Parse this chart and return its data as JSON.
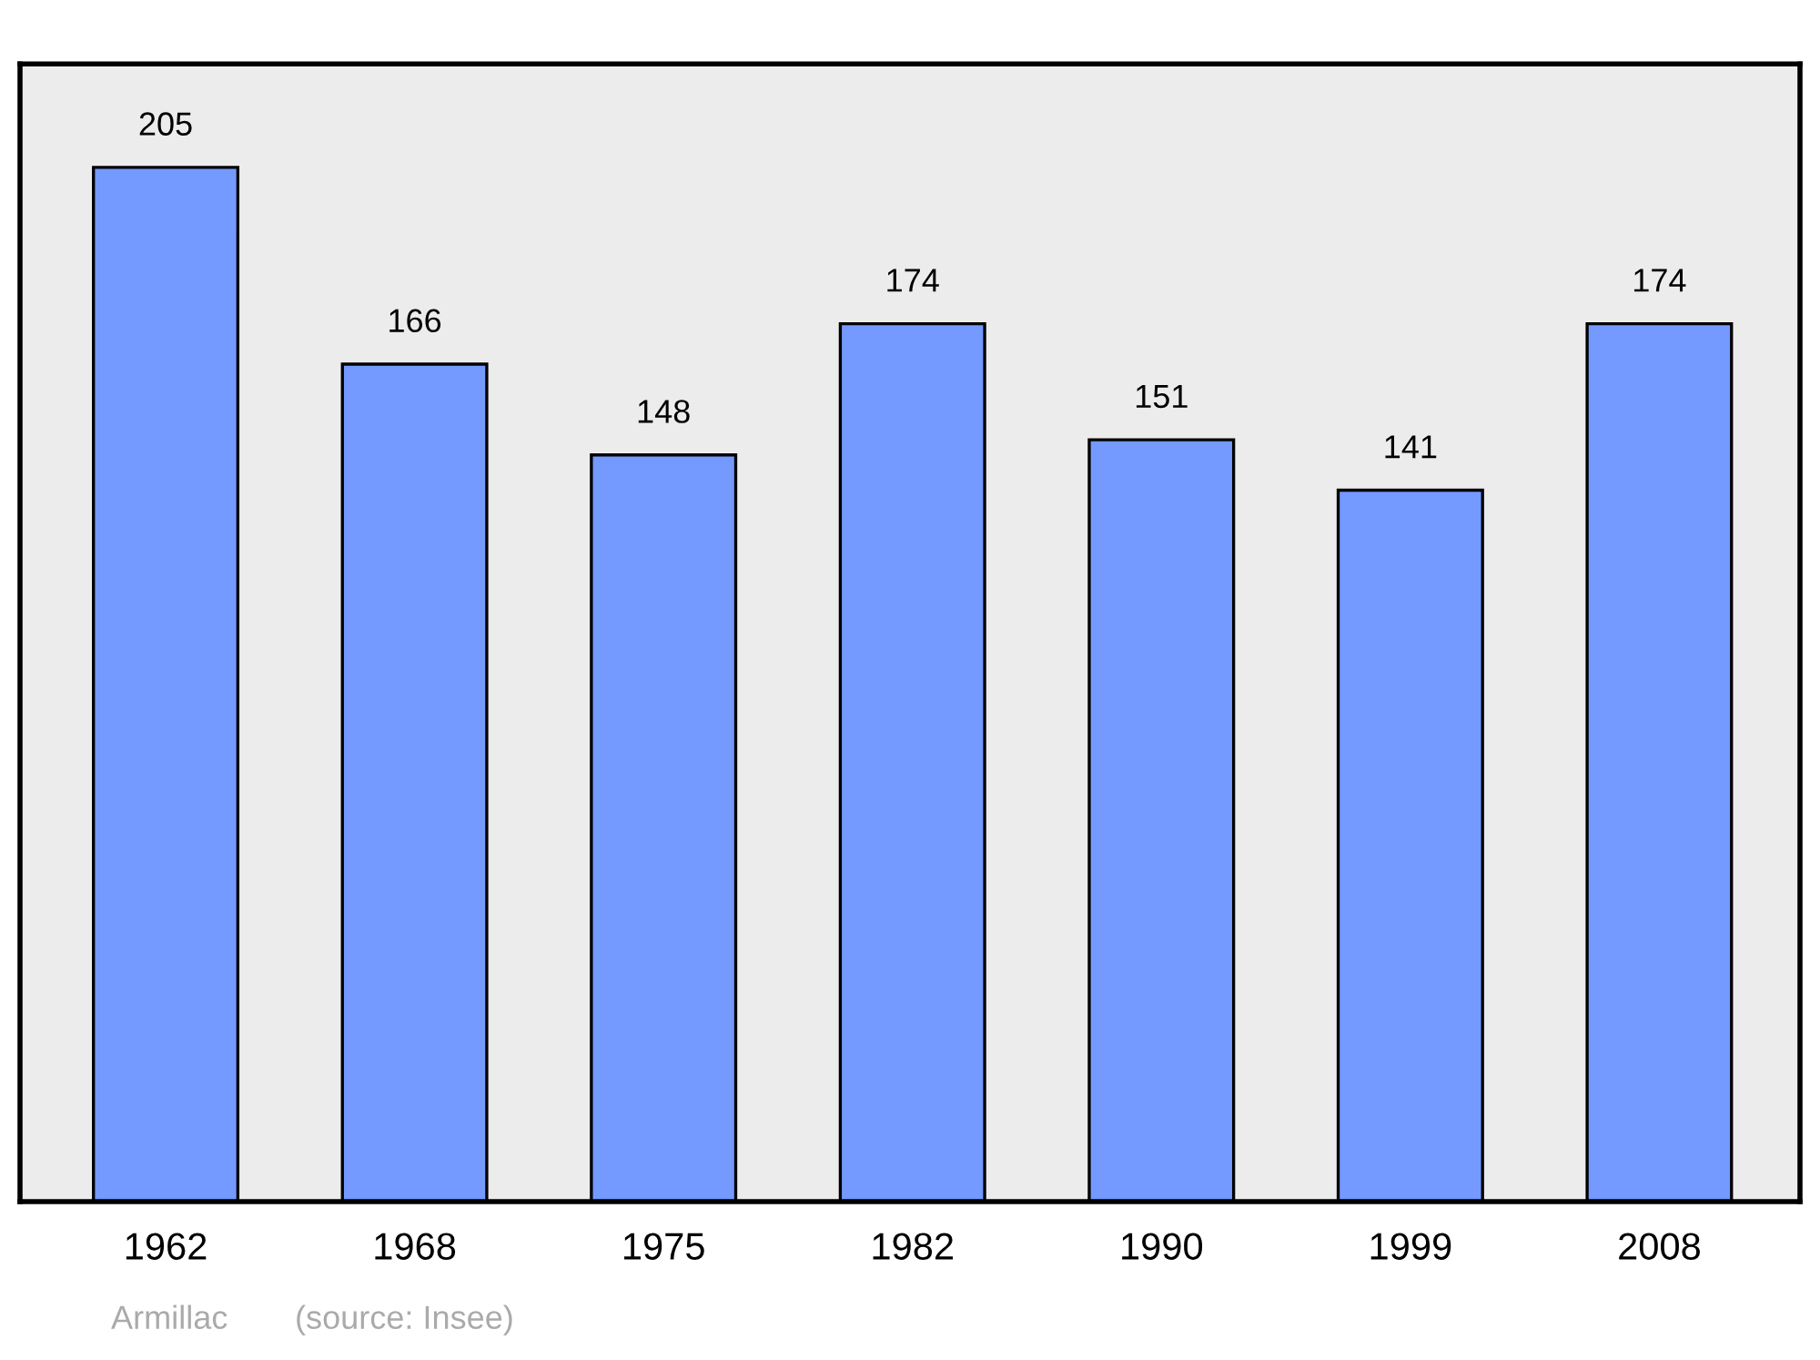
{
  "chart_data": {
    "type": "bar",
    "categories": [
      "1962",
      "1968",
      "1975",
      "1982",
      "1990",
      "1999",
      "2008"
    ],
    "values": [
      205,
      166,
      148,
      174,
      151,
      141,
      174
    ],
    "color": "#7499ff",
    "data_labels": true,
    "grid": false,
    "legend": false,
    "annotations": [
      "Armillac",
      "(source: Insee)"
    ]
  }
}
